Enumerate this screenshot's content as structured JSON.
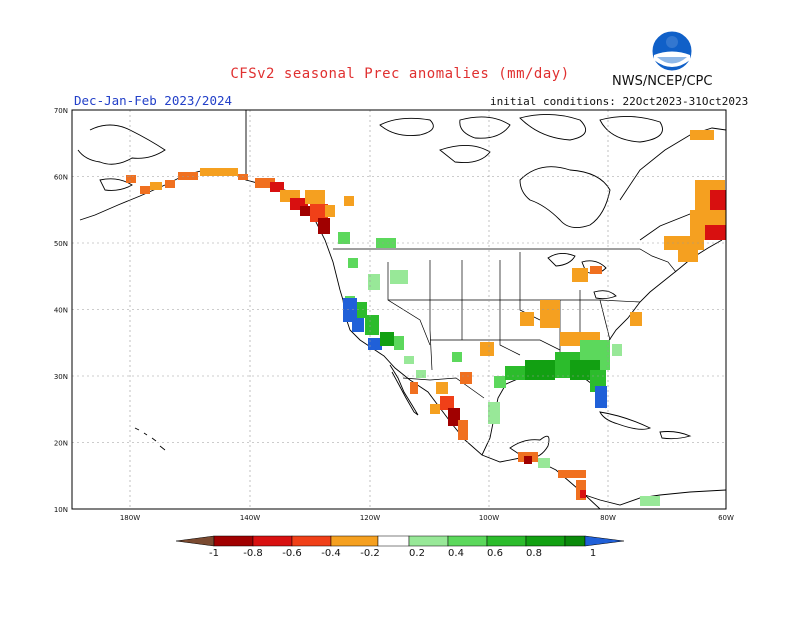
{
  "header": {
    "title": "CFSv2 seasonal Prec anomalies (mm/day)",
    "agency": "NWS/NCEP/CPC",
    "logo_text": "NOAA",
    "season": "Dec-Jan-Feb 2023/2024",
    "initial_conditions": "initial conditions: 22Oct2023-31Oct2023"
  },
  "axes": {
    "lat_labels": [
      "70N",
      "60N",
      "50N",
      "40N",
      "30N",
      "20N",
      "10N"
    ],
    "lon_labels": [
      "180W",
      "140W",
      "120W",
      "100W",
      "80W",
      "60W"
    ]
  },
  "colorbar": {
    "labels": [
      "-1",
      "-0.8",
      "-0.6",
      "-0.4",
      "-0.2",
      "0.2",
      "0.4",
      "0.6",
      "0.8",
      "1"
    ],
    "colors": {
      "lt_minus1": "#7a4a30",
      "minus1": "#a00000",
      "minus08": "#d81010",
      "minus06": "#f04018",
      "minus04": "#f07020",
      "minus02": "#f5a020",
      "neutral": "#ffffff",
      "plus02": "#98e898",
      "plus04": "#5cd85c",
      "plus06": "#2cbc2c",
      "plus08": "#12a012",
      "plus1": "#0a8a0a",
      "gt_plus1": "#2060d8"
    }
  }
}
